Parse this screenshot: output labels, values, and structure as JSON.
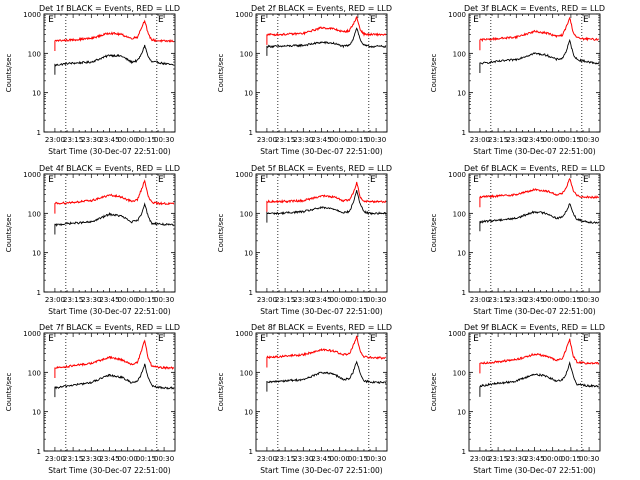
{
  "figure": {
    "background": "#ffffff",
    "axis_color": "#000000",
    "events_color": "#000000",
    "lld_color": "#ff0000"
  },
  "chart_data": [
    {
      "type": "line",
      "title": "Det 1f BLACK = Events, RED = LLD",
      "xlabel": "Start Time (30-Dec-07 22:51:00)",
      "ylabel": "Counts/sec",
      "y_scale": "log",
      "ylim": [
        1,
        1000
      ],
      "y_ticks": [
        "1",
        "10",
        "100",
        "1000"
      ],
      "x_ticks": [
        "23:00",
        "23:15",
        "23:30",
        "23:45",
        "00:00",
        "00:15",
        "00:30"
      ],
      "x_range_minutes": [
        -9,
        99
      ],
      "markers": [
        "E",
        "E"
      ],
      "dotted_lines_min": [
        9,
        84
      ],
      "series": [
        {
          "color": "#000000",
          "x": [
            0,
            10,
            30,
            45,
            55,
            63,
            68,
            71,
            74,
            77,
            80,
            84,
            90,
            98
          ],
          "y": [
            50,
            55,
            60,
            90,
            85,
            60,
            65,
            90,
            160,
            80,
            60,
            60,
            55,
            50
          ]
        },
        {
          "color": "#ff0000",
          "x": [
            0,
            10,
            30,
            45,
            55,
            63,
            68,
            71,
            74,
            77,
            80,
            84,
            90,
            98
          ],
          "y": [
            210,
            215,
            240,
            330,
            300,
            240,
            260,
            420,
            700,
            300,
            220,
            210,
            205,
            205
          ]
        }
      ]
    },
    {
      "type": "line",
      "title": "Det 2f BLACK = Events, RED = LLD",
      "xlabel": "Start Time (30-Dec-07 22:51:00)",
      "ylabel": "Counts/sec",
      "y_scale": "log",
      "ylim": [
        1,
        1000
      ],
      "y_ticks": [
        "1",
        "10",
        "100",
        "1000"
      ],
      "x_ticks": [
        "23:00",
        "23:15",
        "23:30",
        "23:45",
        "00:00",
        "00:15",
        "00:30"
      ],
      "x_range_minutes": [
        -9,
        99
      ],
      "markers": [
        "E",
        "E"
      ],
      "dotted_lines_min": [
        9,
        84
      ],
      "series": [
        {
          "color": "#000000",
          "x": [
            0,
            10,
            30,
            45,
            55,
            63,
            68,
            71,
            74,
            77,
            80,
            84,
            90,
            98
          ],
          "y": [
            150,
            150,
            160,
            190,
            180,
            150,
            160,
            230,
            450,
            220,
            160,
            150,
            150,
            150
          ]
        },
        {
          "color": "#ff0000",
          "x": [
            0,
            10,
            30,
            45,
            55,
            63,
            68,
            71,
            74,
            77,
            80,
            84,
            90,
            98
          ],
          "y": [
            300,
            300,
            320,
            450,
            420,
            350,
            380,
            540,
            820,
            400,
            310,
            300,
            300,
            300
          ]
        }
      ]
    },
    {
      "type": "line",
      "title": "Det 3f BLACK = Events, RED = LLD",
      "xlabel": "Start Time (30-Dec-07 22:51:00)",
      "ylabel": "Counts/sec",
      "y_scale": "log",
      "ylim": [
        1,
        1000
      ],
      "y_ticks": [
        "1",
        "10",
        "100",
        "1000"
      ],
      "x_ticks": [
        "23:00",
        "23:15",
        "23:30",
        "23:45",
        "00:00",
        "00:15",
        "00:30"
      ],
      "x_range_minutes": [
        -9,
        99
      ],
      "markers": [
        "E",
        "E"
      ],
      "dotted_lines_min": [
        9,
        84
      ],
      "series": [
        {
          "color": "#000000",
          "x": [
            0,
            10,
            30,
            45,
            55,
            63,
            68,
            71,
            74,
            77,
            80,
            84,
            90,
            98
          ],
          "y": [
            55,
            60,
            70,
            100,
            90,
            70,
            75,
            110,
            210,
            95,
            70,
            65,
            60,
            55
          ]
        },
        {
          "color": "#ff0000",
          "x": [
            0,
            10,
            30,
            45,
            55,
            63,
            68,
            71,
            74,
            77,
            80,
            84,
            90,
            98
          ],
          "y": [
            220,
            230,
            260,
            360,
            330,
            270,
            290,
            450,
            800,
            340,
            250,
            235,
            230,
            225
          ]
        }
      ]
    },
    {
      "type": "line",
      "title": "Det 4f BLACK = Events, RED = LLD",
      "xlabel": "Start Time (30-Dec-07 22:51:00)",
      "ylabel": "Counts/sec",
      "y_scale": "log",
      "ylim": [
        1,
        1000
      ],
      "y_ticks": [
        "1",
        "10",
        "100",
        "1000"
      ],
      "x_ticks": [
        "23:00",
        "23:15",
        "23:30",
        "23:45",
        "00:00",
        "00:15",
        "00:30"
      ],
      "x_range_minutes": [
        -9,
        99
      ],
      "markers": [
        "E",
        "E"
      ],
      "dotted_lines_min": [
        9,
        84
      ],
      "series": [
        {
          "color": "#000000",
          "x": [
            0,
            10,
            30,
            45,
            55,
            63,
            68,
            71,
            74,
            77,
            80,
            84,
            90,
            98
          ],
          "y": [
            50,
            55,
            60,
            95,
            85,
            60,
            65,
            90,
            180,
            80,
            55,
            55,
            52,
            50
          ]
        },
        {
          "color": "#ff0000",
          "x": [
            0,
            10,
            30,
            45,
            55,
            63,
            68,
            71,
            74,
            77,
            80,
            84,
            90,
            98
          ],
          "y": [
            180,
            185,
            210,
            290,
            260,
            200,
            220,
            380,
            700,
            260,
            190,
            180,
            178,
            175
          ]
        }
      ]
    },
    {
      "type": "line",
      "title": "Det 5f BLACK = Events, RED = LLD",
      "xlabel": "Start Time (30-Dec-07 22:51:00)",
      "ylabel": "Counts/sec",
      "y_scale": "log",
      "ylim": [
        1,
        1000
      ],
      "y_ticks": [
        "1",
        "10",
        "100",
        "1000"
      ],
      "x_ticks": [
        "23:00",
        "23:15",
        "23:30",
        "23:45",
        "00:00",
        "00:15",
        "00:30"
      ],
      "x_range_minutes": [
        -9,
        99
      ],
      "markers": [
        "E",
        "E"
      ],
      "dotted_lines_min": [
        9,
        84
      ],
      "series": [
        {
          "color": "#000000",
          "x": [
            0,
            10,
            30,
            45,
            55,
            63,
            68,
            71,
            74,
            77,
            80,
            84,
            90,
            98
          ],
          "y": [
            100,
            100,
            110,
            140,
            130,
            105,
            110,
            180,
            380,
            170,
            110,
            100,
            100,
            100
          ]
        },
        {
          "color": "#ff0000",
          "x": [
            0,
            10,
            30,
            45,
            55,
            63,
            68,
            71,
            74,
            77,
            80,
            84,
            90,
            98
          ],
          "y": [
            200,
            200,
            210,
            280,
            260,
            210,
            220,
            320,
            600,
            260,
            205,
            200,
            200,
            200
          ]
        }
      ]
    },
    {
      "type": "line",
      "title": "Det 6f BLACK = Events, RED = LLD",
      "xlabel": "Start Time (30-Dec-07 22:51:00)",
      "ylabel": "Counts/sec",
      "y_scale": "log",
      "ylim": [
        1,
        1000
      ],
      "y_ticks": [
        "1",
        "10",
        "100",
        "1000"
      ],
      "x_ticks": [
        "23:00",
        "23:15",
        "23:30",
        "23:45",
        "00:00",
        "00:15",
        "00:30"
      ],
      "x_range_minutes": [
        -9,
        99
      ],
      "markers": [
        "E",
        "E"
      ],
      "dotted_lines_min": [
        9,
        84
      ],
      "series": [
        {
          "color": "#000000",
          "x": [
            0,
            10,
            30,
            45,
            55,
            63,
            68,
            71,
            74,
            77,
            80,
            84,
            90,
            98
          ],
          "y": [
            60,
            65,
            75,
            110,
            100,
            75,
            80,
            110,
            180,
            100,
            70,
            65,
            60,
            58
          ]
        },
        {
          "color": "#ff0000",
          "x": [
            0,
            10,
            30,
            45,
            55,
            63,
            68,
            71,
            74,
            77,
            80,
            84,
            90,
            98
          ],
          "y": [
            260,
            270,
            300,
            400,
            370,
            300,
            320,
            440,
            750,
            380,
            280,
            265,
            260,
            255
          ]
        }
      ]
    },
    {
      "type": "line",
      "title": "Det 7f BLACK = Events, RED = LLD",
      "xlabel": "Start Time (30-Dec-07 22:51:00)",
      "ylabel": "Counts/sec",
      "y_scale": "log",
      "ylim": [
        1,
        1000
      ],
      "y_ticks": [
        "1",
        "10",
        "100",
        "1000"
      ],
      "x_ticks": [
        "23:00",
        "23:15",
        "23:30",
        "23:45",
        "00:00",
        "00:15",
        "00:30"
      ],
      "x_range_minutes": [
        -9,
        99
      ],
      "markers": [
        "E",
        "E"
      ],
      "dotted_lines_min": [
        9,
        84
      ],
      "series": [
        {
          "color": "#000000",
          "x": [
            0,
            10,
            30,
            45,
            55,
            63,
            68,
            71,
            74,
            77,
            80,
            84,
            90,
            98
          ],
          "y": [
            40,
            45,
            55,
            85,
            75,
            55,
            60,
            85,
            160,
            70,
            45,
            42,
            40,
            40
          ]
        },
        {
          "color": "#ff0000",
          "x": [
            0,
            10,
            30,
            45,
            55,
            63,
            68,
            71,
            74,
            77,
            80,
            84,
            90,
            98
          ],
          "y": [
            130,
            140,
            170,
            240,
            210,
            160,
            175,
            330,
            650,
            220,
            145,
            135,
            130,
            130
          ]
        }
      ]
    },
    {
      "type": "line",
      "title": "Det 8f BLACK = Events, RED = LLD",
      "xlabel": "Start Time (30-Dec-07 22:51:00)",
      "ylabel": "Counts/sec",
      "y_scale": "log",
      "ylim": [
        1,
        1000
      ],
      "y_ticks": [
        "1",
        "10",
        "100",
        "1000"
      ],
      "x_ticks": [
        "23:00",
        "23:15",
        "23:30",
        "23:45",
        "00:00",
        "00:15",
        "00:30"
      ],
      "x_range_minutes": [
        -9,
        99
      ],
      "markers": [
        "E",
        "E"
      ],
      "dotted_lines_min": [
        9,
        84
      ],
      "series": [
        {
          "color": "#000000",
          "x": [
            0,
            10,
            30,
            45,
            55,
            63,
            68,
            71,
            74,
            77,
            80,
            84,
            90,
            98
          ],
          "y": [
            55,
            60,
            65,
            100,
            90,
            65,
            70,
            100,
            190,
            90,
            60,
            58,
            55,
            55
          ]
        },
        {
          "color": "#ff0000",
          "x": [
            0,
            10,
            30,
            45,
            55,
            63,
            68,
            71,
            74,
            77,
            80,
            84,
            90,
            98
          ],
          "y": [
            240,
            250,
            280,
            380,
            350,
            280,
            300,
            460,
            800,
            330,
            250,
            240,
            235,
            230
          ]
        }
      ]
    },
    {
      "type": "line",
      "title": "Det 9f BLACK = Events, RED = LLD",
      "xlabel": "Start Time (30-Dec-07 22:51:00)",
      "ylabel": "Counts/sec",
      "y_scale": "log",
      "ylim": [
        1,
        1000
      ],
      "y_ticks": [
        "1",
        "10",
        "100",
        "1000"
      ],
      "x_ticks": [
        "23:00",
        "23:15",
        "23:30",
        "23:45",
        "00:00",
        "00:15",
        "00:30"
      ],
      "x_range_minutes": [
        -9,
        99
      ],
      "markers": [
        "E",
        "E"
      ],
      "dotted_lines_min": [
        9,
        84
      ],
      "series": [
        {
          "color": "#000000",
          "x": [
            0,
            10,
            30,
            45,
            55,
            63,
            68,
            71,
            74,
            77,
            80,
            84,
            90,
            98
          ],
          "y": [
            45,
            50,
            60,
            90,
            80,
            60,
            65,
            90,
            170,
            80,
            50,
            48,
            45,
            45
          ]
        },
        {
          "color": "#ff0000",
          "x": [
            0,
            10,
            30,
            45,
            55,
            63,
            68,
            71,
            74,
            77,
            80,
            84,
            90,
            98
          ],
          "y": [
            170,
            180,
            210,
            290,
            260,
            200,
            220,
            380,
            700,
            260,
            185,
            175,
            170,
            170
          ]
        }
      ]
    }
  ]
}
